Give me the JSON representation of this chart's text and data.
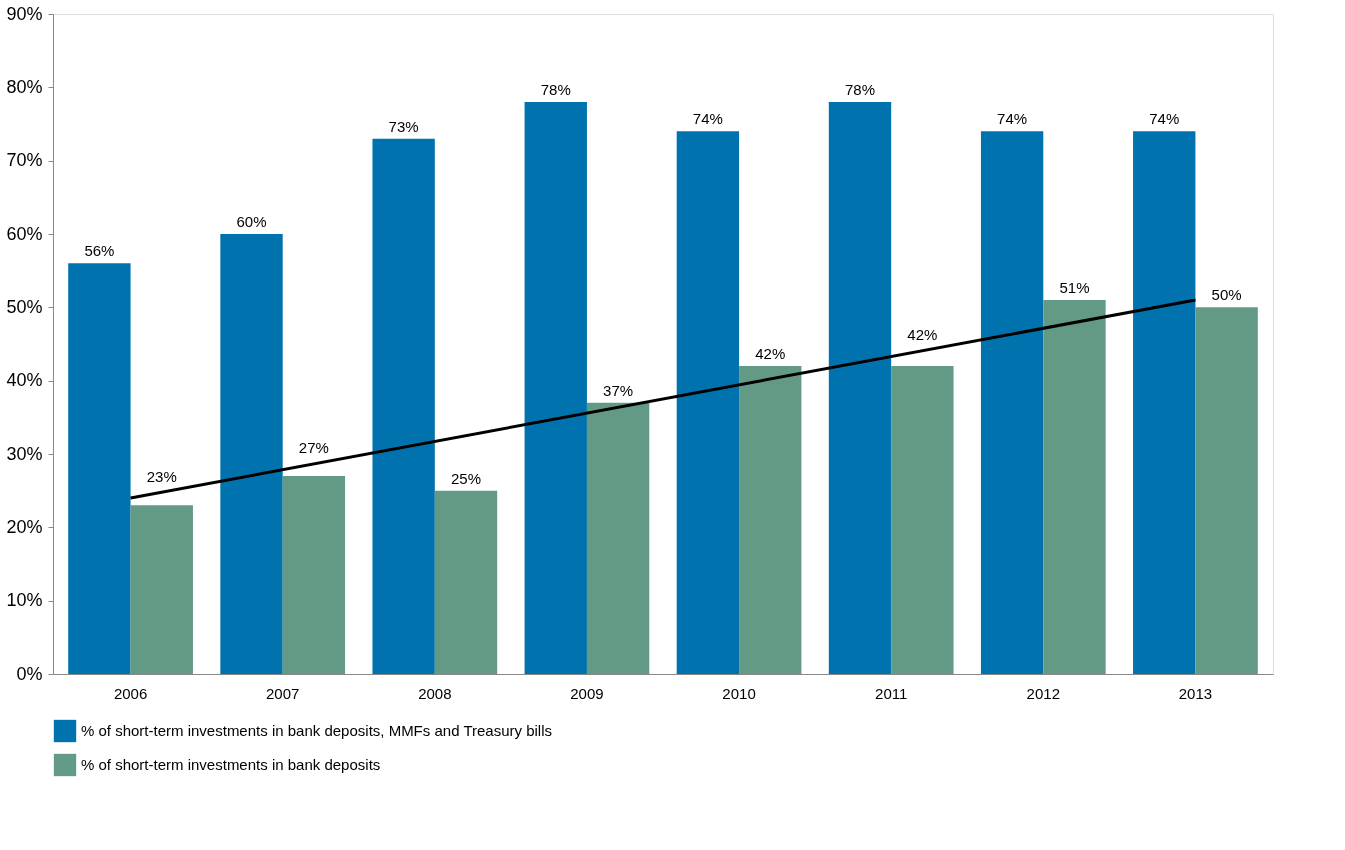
{
  "chart_data": {
    "type": "bar",
    "categories": [
      "2006",
      "2007",
      "2008",
      "2009",
      "2010",
      "2011",
      "2012",
      "2013"
    ],
    "series": [
      {
        "name": "% of short-term investments in bank deposits, MMFs and Treasury bills",
        "color": "#0073ae",
        "values": [
          56,
          60,
          73,
          78,
          74,
          78,
          74,
          74
        ],
        "value_labels": [
          "56%",
          "60%",
          "73%",
          "78%",
          "74%",
          "78%",
          "74%",
          "74%"
        ]
      },
      {
        "name": "% of short-term investments in bank deposits",
        "color": "#639a85",
        "values": [
          23,
          27,
          25,
          37,
          42,
          42,
          51,
          50
        ],
        "value_labels": [
          "23%",
          "27%",
          "25%",
          "37%",
          "42%",
          "42%",
          "51%",
          "50%"
        ]
      },
      {
        "type": "line",
        "color": "#000000",
        "values": [
          24,
          null,
          null,
          null,
          null,
          null,
          null,
          51
        ]
      }
    ],
    "ylim": [
      0,
      90
    ],
    "yticks": [
      {
        "value": 0,
        "label": "0%"
      },
      {
        "value": 10,
        "label": "10%"
      },
      {
        "value": 20,
        "label": "20%"
      },
      {
        "value": 30,
        "label": "30%"
      },
      {
        "value": 40,
        "label": "40%"
      },
      {
        "value": 50,
        "label": "50%"
      },
      {
        "value": 60,
        "label": "60%"
      },
      {
        "value": 70,
        "label": "70%"
      },
      {
        "value": 80,
        "label": "80%"
      },
      {
        "value": 90,
        "label": "90%"
      }
    ],
    "grid": false,
    "legend": "bottom"
  }
}
